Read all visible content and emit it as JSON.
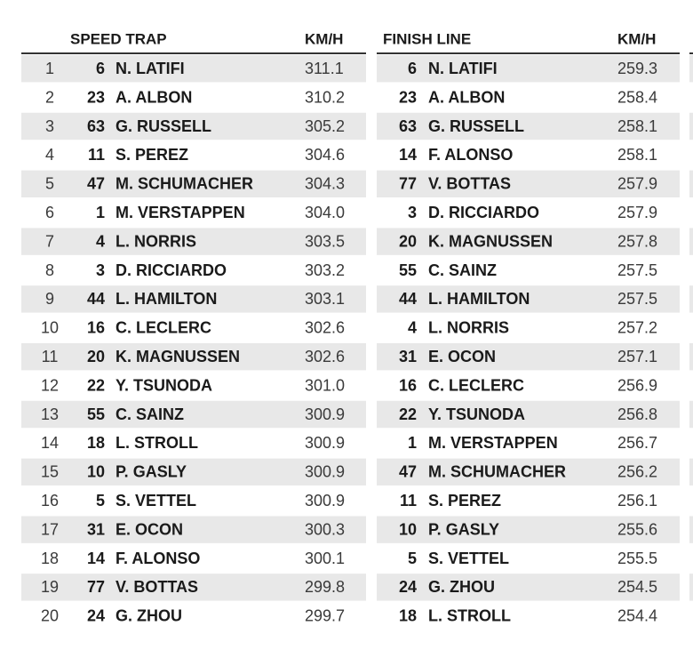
{
  "speed_trap": {
    "headers": [
      "SPEED TRAP",
      "KM/H"
    ],
    "rows": [
      [
        1,
        6,
        "N. LATIFI",
        "311.1"
      ],
      [
        2,
        23,
        "A. ALBON",
        "310.2"
      ],
      [
        3,
        63,
        "G. RUSSELL",
        "305.2"
      ],
      [
        4,
        11,
        "S. PEREZ",
        "304.6"
      ],
      [
        5,
        47,
        "M. SCHUMACHER",
        "304.3"
      ],
      [
        6,
        1,
        "M. VERSTAPPEN",
        "304.0"
      ],
      [
        7,
        4,
        "L. NORRIS",
        "303.5"
      ],
      [
        8,
        3,
        "D. RICCIARDO",
        "303.2"
      ],
      [
        9,
        44,
        "L. HAMILTON",
        "303.1"
      ],
      [
        10,
        16,
        "C. LECLERC",
        "302.6"
      ],
      [
        11,
        20,
        "K. MAGNUSSEN",
        "302.6"
      ],
      [
        12,
        22,
        "Y. TSUNODA",
        "301.0"
      ],
      [
        13,
        55,
        "C. SAINZ",
        "300.9"
      ],
      [
        14,
        18,
        "L. STROLL",
        "300.9"
      ],
      [
        15,
        10,
        "P. GASLY",
        "300.9"
      ],
      [
        16,
        5,
        "S. VETTEL",
        "300.9"
      ],
      [
        17,
        31,
        "E. OCON",
        "300.3"
      ],
      [
        18,
        14,
        "F. ALONSO",
        "300.1"
      ],
      [
        19,
        77,
        "V. BOTTAS",
        "299.8"
      ],
      [
        20,
        24,
        "G. ZHOU",
        "299.7"
      ]
    ]
  },
  "finish_line": {
    "headers": [
      "FINISH LINE",
      "KM/H"
    ],
    "rows": [
      [
        6,
        "N. LATIFI",
        "259.3"
      ],
      [
        23,
        "A. ALBON",
        "258.4"
      ],
      [
        63,
        "G. RUSSELL",
        "258.1"
      ],
      [
        14,
        "F. ALONSO",
        "258.1"
      ],
      [
        77,
        "V. BOTTAS",
        "257.9"
      ],
      [
        3,
        "D. RICCIARDO",
        "257.9"
      ],
      [
        20,
        "K. MAGNUSSEN",
        "257.8"
      ],
      [
        55,
        "C. SAINZ",
        "257.5"
      ],
      [
        44,
        "L. HAMILTON",
        "257.5"
      ],
      [
        4,
        "L. NORRIS",
        "257.2"
      ],
      [
        31,
        "E. OCON",
        "257.1"
      ],
      [
        16,
        "C. LECLERC",
        "256.9"
      ],
      [
        22,
        "Y. TSUNODA",
        "256.8"
      ],
      [
        1,
        "M. VERSTAPPEN",
        "256.7"
      ],
      [
        47,
        "M. SCHUMACHER",
        "256.2"
      ],
      [
        11,
        "S. PEREZ",
        "256.1"
      ],
      [
        10,
        "P. GASLY",
        "255.6"
      ],
      [
        5,
        "S. VETTEL",
        "255.5"
      ],
      [
        24,
        "G. ZHOU",
        "254.5"
      ],
      [
        18,
        "L. STROLL",
        "254.4"
      ]
    ]
  }
}
